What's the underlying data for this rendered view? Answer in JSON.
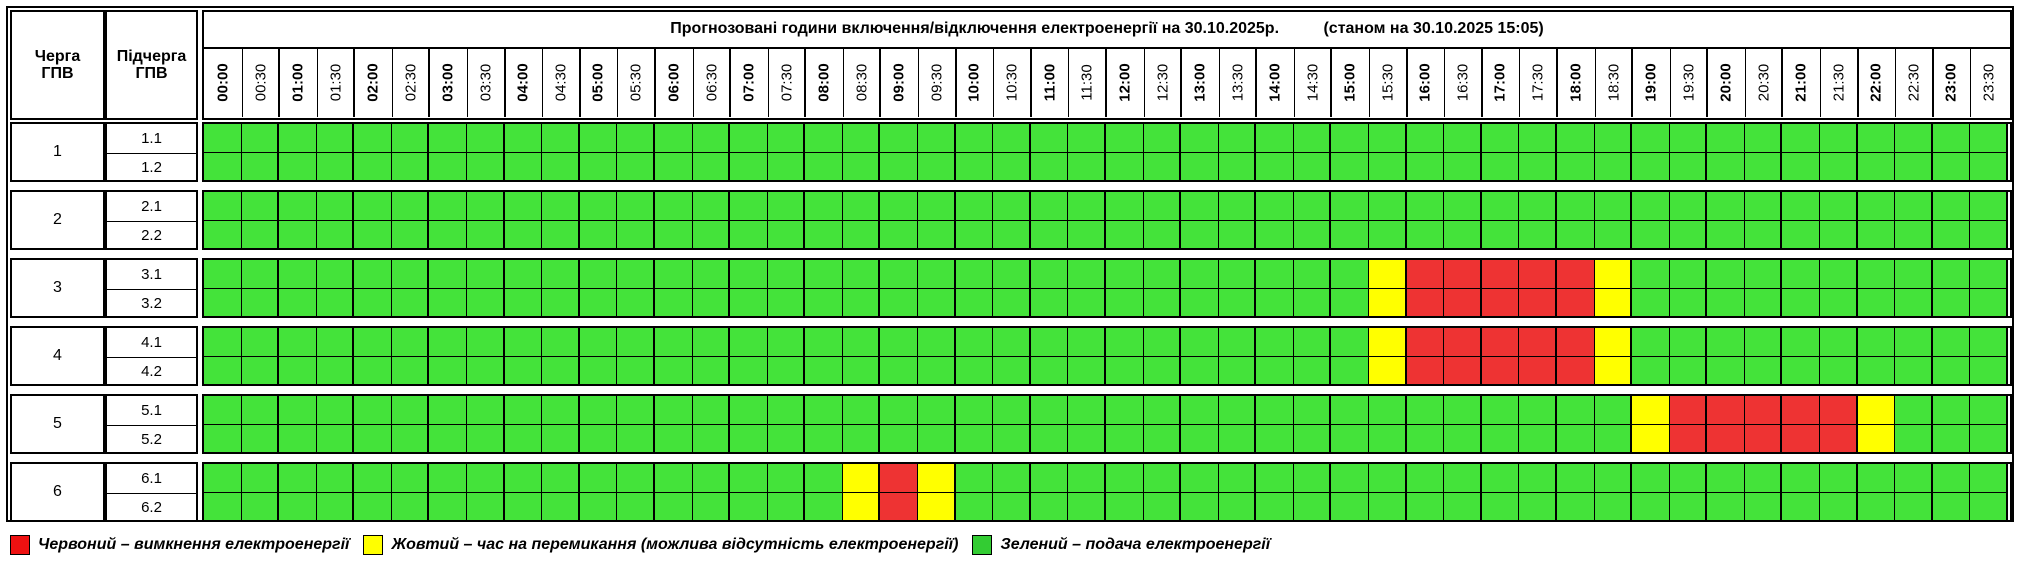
{
  "title": "Прогнозовані години включення/відключення електроенергії на 30.10.2025р.          (станом на 30.10.2025 15:05)",
  "headers": {
    "queue": "Черга\nГПВ",
    "subqueue": "Підчерга\nГПВ"
  },
  "times": [
    "00:00",
    "00:30",
    "01:00",
    "01:30",
    "02:00",
    "02:30",
    "03:00",
    "03:30",
    "04:00",
    "04:30",
    "05:00",
    "05:30",
    "06:00",
    "06:30",
    "07:00",
    "07:30",
    "08:00",
    "08:30",
    "09:00",
    "09:30",
    "10:00",
    "10:30",
    "11:00",
    "11:30",
    "12:00",
    "12:30",
    "13:00",
    "13:30",
    "14:00",
    "14:30",
    "15:00",
    "15:30",
    "16:00",
    "16:30",
    "17:00",
    "17:30",
    "18:00",
    "18:30",
    "19:00",
    "19:30",
    "20:00",
    "20:30",
    "21:00",
    "21:30",
    "22:00",
    "22:30",
    "23:00",
    "23:30"
  ],
  "colors": {
    "R": "#ee3333",
    "Y": "#ffff00",
    "G": "#44e33a"
  },
  "groups": [
    {
      "queue": "1",
      "rows": [
        {
          "sub": "1.1",
          "slots": "GGGGGGGGGGGGGGGGGGGGGGGGGGGGGGGGGGGGGGGGGGGGGGGG"
        },
        {
          "sub": "1.2",
          "slots": "GGGGGGGGGGGGGGGGGGGGGGGGGGGGGGGGGGGGGGGGGGGGGGGG"
        }
      ]
    },
    {
      "queue": "2",
      "rows": [
        {
          "sub": "2.1",
          "slots": "GGGGGGGGGGGGGGGGGGGGGGGGGGGGGGGGGGGGGGGGGGGGGGGG"
        },
        {
          "sub": "2.2",
          "slots": "GGGGGGGGGGGGGGGGGGGGGGGGGGGGGGGGGGGGGGGGGGGGGGGG"
        }
      ]
    },
    {
      "queue": "3",
      "rows": [
        {
          "sub": "3.1",
          "slots": "GGGGGGGGGGGGGGGGGGGGGGGGGGGGGGGYRRRRRYGGGGGGGGGG"
        },
        {
          "sub": "3.2",
          "slots": "GGGGGGGGGGGGGGGGGGGGGGGGGGGGGGGYRRRRRYGGGGGGGGGG"
        }
      ]
    },
    {
      "queue": "4",
      "rows": [
        {
          "sub": "4.1",
          "slots": "GGGGGGGGGGGGGGGGGGGGGGGGGGGGGGGYRRRRRYGGGGGGGGGG"
        },
        {
          "sub": "4.2",
          "slots": "GGGGGGGGGGGGGGGGGGGGGGGGGGGGGGGYRRRRRYGGGGGGGGGG"
        }
      ]
    },
    {
      "queue": "5",
      "rows": [
        {
          "sub": "5.1",
          "slots": "GGGGGGGGGGGGGGGGGGGGGGGGGGGGGGGGGGGGGGYRRRRRYGGG"
        },
        {
          "sub": "5.2",
          "slots": "GGGGGGGGGGGGGGGGGGGGGGGGGGGGGGGGGGGGGGYRRRRRYGGG"
        }
      ]
    },
    {
      "queue": "6",
      "rows": [
        {
          "sub": "6.1",
          "slots": "GGGGGGGGGGGGGGGGGYRYGGGGGGGGGGGGGGGGGGGGGGGGGGGG"
        },
        {
          "sub": "6.2",
          "slots": "GGGGGGGGGGGGGGGGGYRYGGGGGGGGGGGGGGGGGGGGGGGGGGGG"
        }
      ]
    }
  ],
  "legend": [
    {
      "color": "#ee1111",
      "text": "Червоний – вимкнення електроенергії"
    },
    {
      "color": "#ffff00",
      "text": "Жовтий – час на перемикання (можлива відсутність електроенергії)"
    },
    {
      "color": "#33cc33",
      "text": "Зелений – подача електроенергії"
    }
  ]
}
